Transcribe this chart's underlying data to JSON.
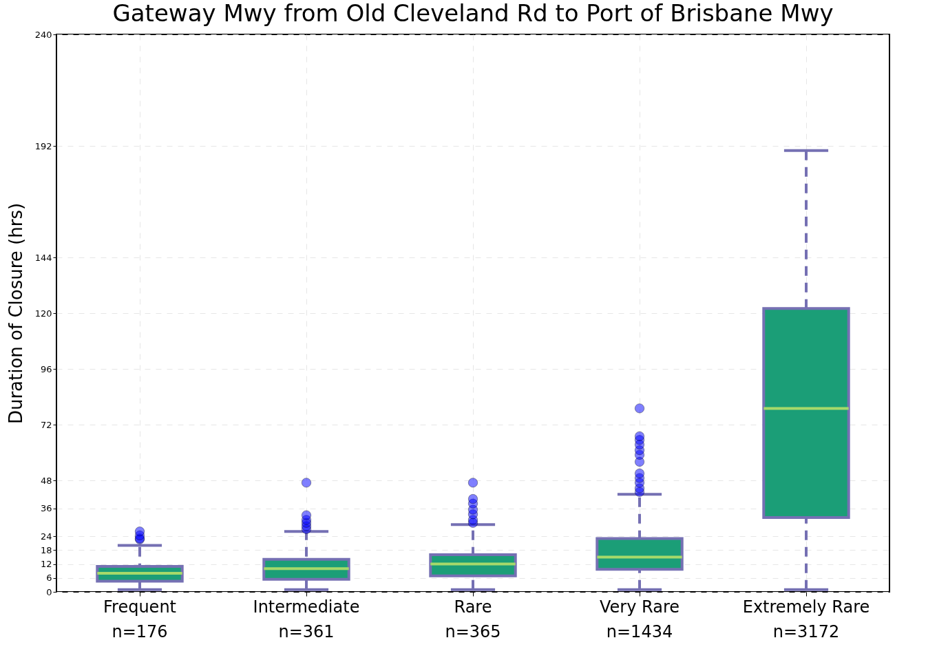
{
  "chart_data": {
    "type": "box",
    "title": "Gateway Mwy  from Old Cleveland Rd to Port of Brisbane Mwy",
    "ylabel": "Duration of Closure (hrs)",
    "categories": [
      "Frequent\nn=176",
      "Intermediate\nn=361",
      "Rare\nn=365",
      "Very Rare\nn=1434",
      "Extremely Rare\nn=3172"
    ],
    "boxes": [
      {
        "low": 1,
        "q1": 4.6,
        "median": 8,
        "q3": 11,
        "high": 20,
        "outliers": [
          22.6,
          23,
          24.3,
          26
        ]
      },
      {
        "low": 1,
        "q1": 5.4,
        "median": 10,
        "q3": 14,
        "high": 26,
        "outliers": [
          27,
          28.3,
          29.7,
          31,
          33,
          47
        ]
      },
      {
        "low": 1,
        "q1": 6.9,
        "median": 12,
        "q3": 16,
        "high": 29,
        "outliers": [
          29.7,
          31,
          33.4,
          35.4,
          38,
          40,
          47
        ]
      },
      {
        "low": 1,
        "q1": 9.7,
        "median": 15,
        "q3": 23,
        "high": 42,
        "outliers": [
          43,
          44.6,
          47,
          49,
          51,
          56,
          59,
          61,
          63.4,
          65.4,
          67,
          79
        ]
      },
      {
        "low": 1,
        "q1": 32,
        "median": 79,
        "q3": 122,
        "high": 190
      }
    ],
    "color": "#1b9e77",
    "ylim": [
      0,
      240
    ],
    "yticks": [
      0,
      6,
      12,
      18,
      24,
      36,
      48,
      72,
      96,
      120,
      144,
      192,
      240
    ],
    "grid": true
  }
}
